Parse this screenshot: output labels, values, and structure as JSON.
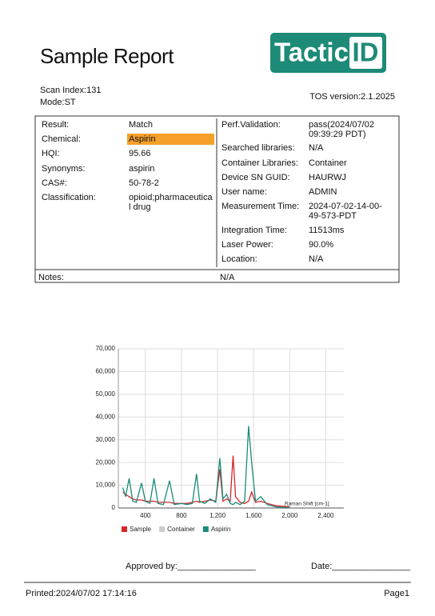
{
  "header": {
    "title": "Sample Report",
    "logo": {
      "text": "Tactic",
      "badge": "ID",
      "color": "#1e8a78"
    }
  },
  "scan_index": "Scan Index:131",
  "mode": "Mode:ST",
  "tos_version": "TOS version:2.1.2025",
  "details": {
    "left": [
      {
        "label": "Result:",
        "value": [
          "Match"
        ]
      },
      {
        "label": "Chemical:",
        "value": [
          "Aspirin"
        ],
        "highlight": "#f5a02a"
      },
      {
        "label": "HQI:",
        "value": [
          "95.66"
        ]
      },
      {
        "label": "Synonyms:",
        "value": [
          "aspirin"
        ]
      },
      {
        "label": "CAS#:",
        "value": [
          "50-78-2"
        ]
      },
      {
        "label": "Classification:",
        "value": [
          "opioid;pharmaceutica",
          "l drug"
        ]
      }
    ],
    "right": [
      {
        "label": "Perf.Validation:",
        "value": [
          "pass(2024/07/02",
          "09:39:29 PDT)"
        ]
      },
      {
        "label": "Searched libraries:",
        "value": [
          "N/A"
        ]
      },
      {
        "label": "Container Libraries:",
        "value": [
          "Container"
        ]
      },
      {
        "label": "Device SN GUID:",
        "value": [
          "HAURWJ"
        ]
      },
      {
        "label": "User name:",
        "value": [
          "ADMIN"
        ]
      },
      {
        "label": "Measurement Time:",
        "value": [
          "2024-07-02-14-00-",
          "49-573-PDT"
        ]
      },
      {
        "label": "Integration Time:",
        "value": [
          "11513ms"
        ]
      },
      {
        "label": "Laser Power:",
        "value": [
          "90.0%"
        ]
      },
      {
        "label": "Location:",
        "value": [
          "N/A"
        ]
      }
    ]
  },
  "notes": {
    "label": "Notes:",
    "value": "N/A"
  },
  "chart_data": {
    "type": "line",
    "x_label": "Raman Shift [cm-1]",
    "x": [
      150,
      180,
      220,
      260,
      300,
      357,
      400,
      450,
      495,
      540,
      600,
      667,
      720,
      800,
      860,
      920,
      967,
      1000,
      1060,
      1120,
      1180,
      1225,
      1260,
      1300,
      1340,
      1372,
      1400,
      1450,
      1500,
      1544,
      1578,
      1620,
      1680,
      1750,
      1800,
      1850,
      1900,
      2000
    ],
    "series": [
      {
        "name": "Sample",
        "color": "#d62728",
        "values": [
          7000,
          6000,
          5000,
          4000,
          3500,
          3500,
          3000,
          3000,
          3000,
          2500,
          2500,
          2500,
          2000,
          2000,
          2000,
          2500,
          3000,
          2500,
          3000,
          3500,
          3000,
          17000,
          3000,
          4000,
          3000,
          23000,
          5000,
          2500,
          2000,
          3000,
          7000,
          2500,
          3000,
          2000,
          1500,
          1000,
          800,
          600
        ]
      },
      {
        "name": "Container",
        "color": "#cccccc",
        "values": [
          null,
          null,
          null,
          null,
          null,
          null,
          null,
          null,
          null,
          null,
          null,
          null,
          null,
          null,
          null,
          null,
          null,
          null,
          null,
          null,
          null,
          null,
          null,
          null,
          null,
          null,
          null,
          null,
          null,
          null,
          null,
          null,
          null,
          null,
          null,
          null,
          null,
          null
        ]
      },
      {
        "name": "Aspirin",
        "color": "#1a8a7a",
        "values": [
          9000,
          5000,
          13000,
          3000,
          2500,
          11000,
          3000,
          2000,
          13000,
          2000,
          1500,
          12000,
          1500,
          2000,
          1500,
          2000,
          15000,
          3000,
          2000,
          4000,
          2500,
          22000,
          4000,
          6000,
          2000,
          1500,
          2500,
          1500,
          3000,
          36000,
          20000,
          3000,
          5000,
          1500,
          1000,
          500,
          300,
          200
        ]
      }
    ],
    "xlim": [
      100,
      2600
    ],
    "ylim": [
      0,
      70000
    ],
    "xticks": [
      400,
      800,
      {
        "value": 1200,
        "label": "1,200"
      },
      {
        "value": 1600,
        "label": "1,600"
      },
      {
        "value": 2000,
        "label": "2,000"
      },
      {
        "value": 2400,
        "label": "2,400"
      }
    ],
    "yticks": [
      0,
      {
        "value": 10000,
        "label": "10,000"
      },
      {
        "value": 20000,
        "label": "20,000"
      },
      {
        "value": 30000,
        "label": "30,000"
      },
      {
        "value": 40000,
        "label": "40,000"
      },
      {
        "value": 50000,
        "label": "50,000"
      },
      {
        "value": 60000,
        "label": "60,000"
      },
      {
        "value": 70000,
        "label": "70,000"
      }
    ],
    "grid": true,
    "legend": "bottom"
  },
  "footer": {
    "approved_by": "Approved by:________________",
    "date": "Date:________________",
    "printed": "Printed:2024/07/02 17:14:16",
    "page": "Page1"
  }
}
